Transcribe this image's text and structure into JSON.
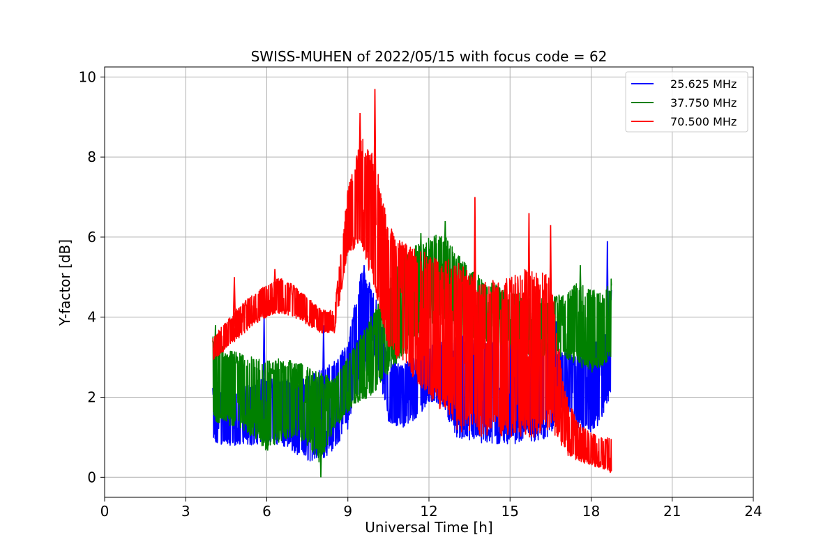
{
  "chart_data": {
    "type": "line",
    "title": "SWISS-MUHEN of 2022/05/15 with focus code = 62",
    "xlabel": "Universal Time [h]",
    "ylabel": "Y-factor [dB]",
    "xlim": [
      0,
      24
    ],
    "ylim": [
      -0.5,
      10.25
    ],
    "xticks": [
      0,
      3,
      6,
      9,
      12,
      15,
      18,
      21,
      24
    ],
    "yticks": [
      0,
      2,
      4,
      6,
      8,
      10
    ],
    "grid": true,
    "legend_position": "top-right",
    "series": [
      {
        "name": "25.625 MHz",
        "color": "#0000ff",
        "x": [
          4.0,
          4.5,
          5.0,
          5.5,
          6.0,
          6.5,
          7.0,
          7.5,
          8.0,
          8.5,
          9.0,
          9.5,
          10.0,
          10.5,
          11.0,
          11.5,
          12.0,
          12.5,
          13.0,
          13.5,
          14.0,
          14.5,
          15.0,
          15.5,
          16.0,
          16.5,
          17.0,
          17.5,
          18.0,
          18.5,
          18.75
        ],
        "low": [
          0.8,
          0.8,
          0.8,
          0.8,
          0.9,
          0.8,
          0.6,
          0.4,
          0.4,
          0.7,
          1.2,
          2.4,
          3.0,
          1.4,
          1.2,
          1.4,
          1.9,
          1.8,
          1.0,
          0.9,
          0.8,
          0.8,
          0.8,
          0.9,
          0.9,
          1.0,
          1.6,
          1.2,
          1.0,
          1.6,
          1.9
        ],
        "high": [
          2.3,
          2.0,
          2.2,
          2.4,
          2.5,
          2.4,
          2.5,
          2.6,
          2.7,
          2.9,
          3.4,
          5.3,
          4.6,
          3.0,
          2.8,
          3.0,
          3.4,
          3.4,
          3.6,
          3.6,
          3.8,
          3.6,
          3.6,
          3.5,
          3.6,
          3.4,
          3.2,
          3.0,
          3.4,
          3.6,
          4.9
        ],
        "spikes": [
          [
            5.9,
            4.0
          ],
          [
            8.1,
            3.8
          ],
          [
            9.6,
            5.3
          ],
          [
            17.5,
            3.4
          ],
          [
            18.6,
            5.9
          ],
          [
            16.7,
            3.9
          ]
        ]
      },
      {
        "name": "37.750 MHz",
        "color": "#008000",
        "x": [
          4.0,
          4.5,
          5.0,
          5.5,
          6.0,
          6.5,
          7.0,
          7.5,
          8.0,
          8.5,
          9.0,
          9.5,
          10.0,
          10.5,
          11.0,
          11.5,
          12.0,
          12.5,
          13.0,
          13.5,
          14.0,
          14.5,
          15.0,
          15.5,
          16.0,
          16.5,
          17.0,
          17.5,
          18.0,
          18.5,
          18.75
        ],
        "low": [
          1.4,
          1.3,
          1.2,
          1.0,
          0.6,
          0.9,
          1.0,
          0.8,
          0.3,
          1.2,
          1.6,
          1.9,
          2.1,
          2.6,
          3.0,
          3.4,
          3.8,
          4.0,
          3.6,
          3.5,
          3.4,
          3.3,
          3.2,
          3.1,
          3.0,
          3.0,
          3.0,
          2.8,
          2.6,
          2.8,
          3.0
        ],
        "high": [
          3.6,
          3.2,
          3.1,
          3.0,
          2.9,
          3.0,
          2.9,
          2.8,
          2.6,
          2.5,
          3.0,
          3.6,
          4.2,
          4.8,
          5.6,
          5.8,
          6.0,
          6.1,
          5.7,
          5.2,
          5.0,
          4.8,
          4.6,
          4.6,
          4.5,
          4.5,
          4.6,
          4.9,
          4.7,
          4.6,
          5.0
        ],
        "spikes": [
          [
            4.1,
            3.8
          ],
          [
            8.0,
            0.0
          ],
          [
            11.7,
            6.1
          ],
          [
            12.6,
            6.4
          ],
          [
            17.6,
            5.3
          ]
        ]
      },
      {
        "name": "70.500 MHz",
        "color": "#ff0000",
        "x": [
          4.0,
          4.5,
          5.0,
          5.5,
          6.0,
          6.5,
          7.0,
          7.5,
          8.0,
          8.5,
          9.0,
          9.5,
          10.0,
          10.5,
          11.0,
          11.5,
          12.0,
          12.5,
          13.0,
          13.5,
          14.0,
          14.5,
          15.0,
          15.5,
          16.0,
          16.5,
          17.0,
          17.5,
          18.0,
          18.5,
          18.75
        ],
        "low": [
          2.9,
          3.2,
          3.5,
          3.8,
          4.0,
          4.1,
          4.0,
          3.8,
          3.6,
          3.6,
          5.6,
          5.8,
          4.6,
          3.2,
          2.8,
          2.4,
          2.0,
          1.6,
          1.2,
          1.0,
          1.0,
          1.0,
          1.0,
          1.0,
          1.0,
          1.2,
          0.6,
          0.4,
          0.3,
          0.2,
          0.1
        ],
        "high": [
          3.5,
          3.9,
          4.3,
          4.6,
          4.8,
          5.0,
          4.8,
          4.5,
          4.2,
          4.2,
          7.2,
          8.5,
          8.0,
          6.3,
          5.9,
          5.7,
          5.6,
          5.4,
          5.5,
          5.2,
          5.0,
          4.9,
          5.0,
          5.2,
          5.1,
          5.2,
          2.2,
          1.4,
          1.1,
          1.0,
          1.0
        ],
        "spikes": [
          [
            9.45,
            9.1
          ],
          [
            10.0,
            9.7
          ],
          [
            13.7,
            7.0
          ],
          [
            15.7,
            6.6
          ],
          [
            16.5,
            6.3
          ],
          [
            4.8,
            5.0
          ],
          [
            6.3,
            5.2
          ]
        ]
      }
    ]
  }
}
